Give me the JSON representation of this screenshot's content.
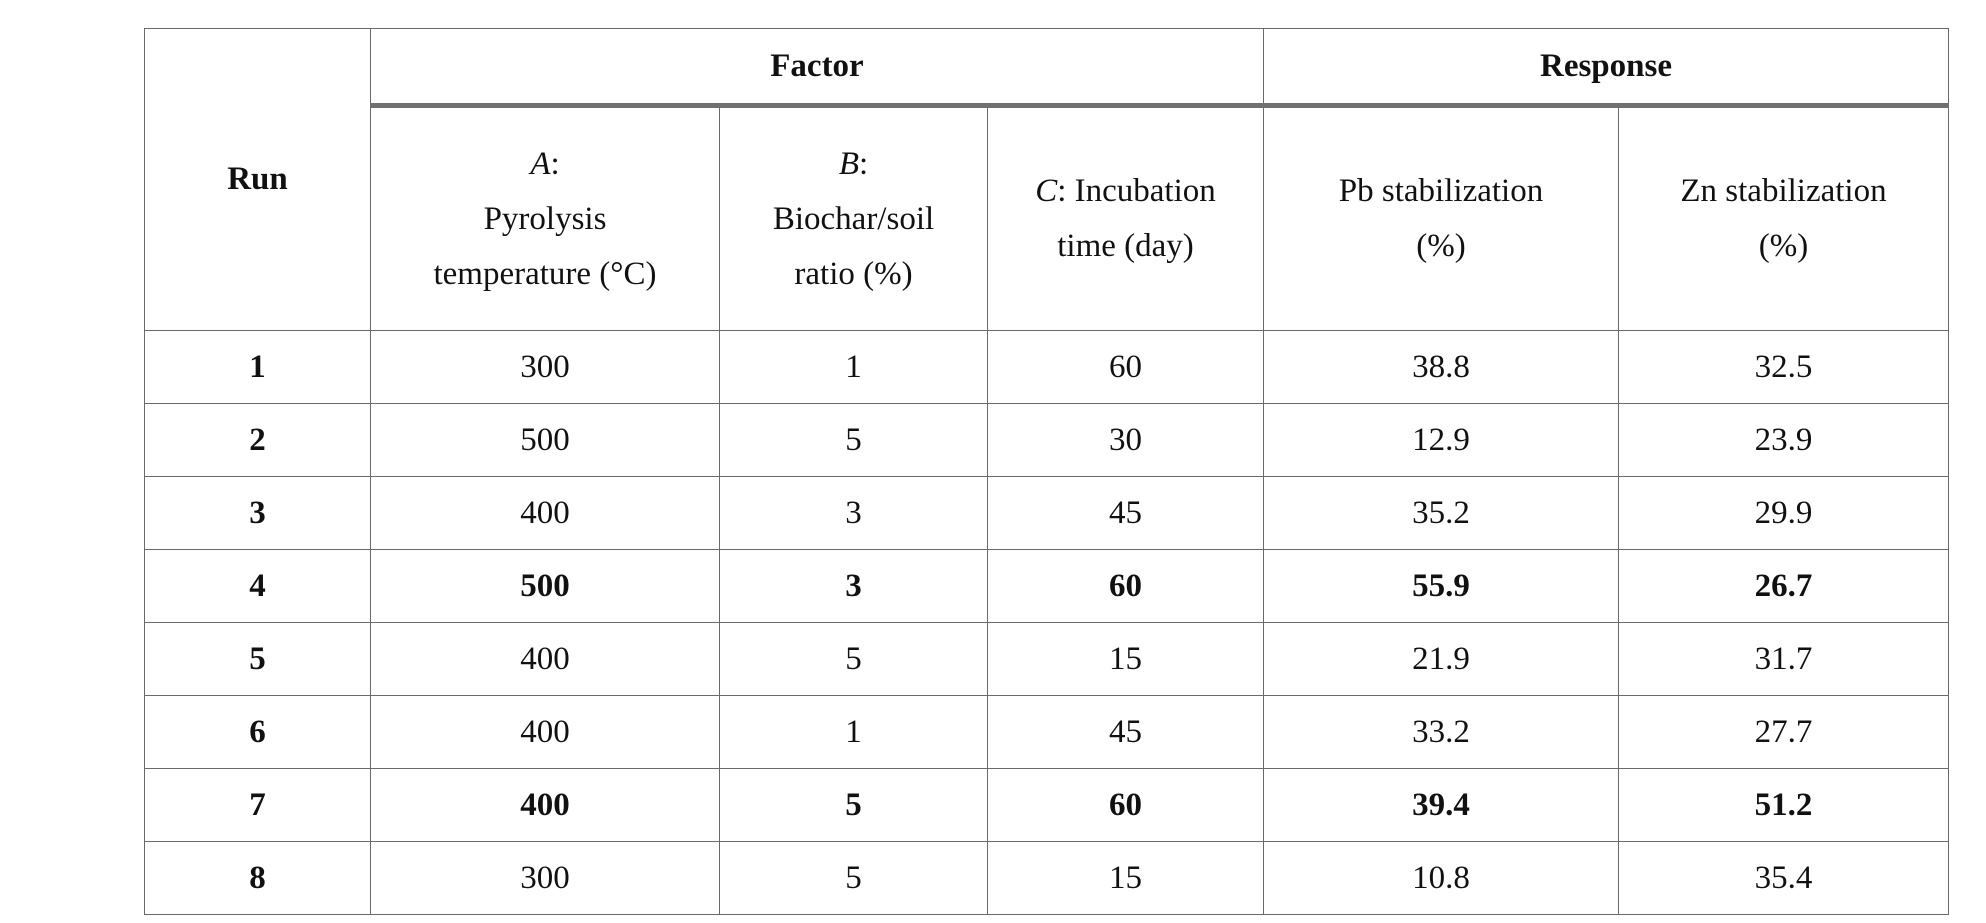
{
  "table": {
    "header": {
      "run": "Run",
      "factor": "Factor",
      "response": "Response",
      "columns": [
        {
          "symbol": "A",
          "lines": [
            ":",
            "Pyrolysis",
            "temperature (°C)"
          ]
        },
        {
          "symbol": "B",
          "lines": [
            ":",
            "Biochar/soil",
            "ratio (%)"
          ]
        },
        {
          "symbol": "C",
          "lines": [
            ": Incubation",
            "time (day)"
          ]
        },
        {
          "lines": [
            "Pb stabilization",
            "(%)"
          ]
        },
        {
          "lines": [
            "Zn stabilization",
            "(%)"
          ]
        }
      ]
    },
    "rows": [
      {
        "cells": [
          1,
          300,
          1,
          60,
          38.8,
          32.5
        ],
        "bold": false
      },
      {
        "cells": [
          2,
          500,
          5,
          30,
          12.9,
          23.9
        ],
        "bold": false
      },
      {
        "cells": [
          3,
          400,
          3,
          45,
          35.2,
          29.9
        ],
        "bold": false
      },
      {
        "cells": [
          4,
          500,
          3,
          60,
          55.9,
          26.7
        ],
        "bold": true
      },
      {
        "cells": [
          5,
          400,
          5,
          15,
          21.9,
          31.7
        ],
        "bold": false
      },
      {
        "cells": [
          6,
          400,
          1,
          45,
          33.2,
          27.7
        ],
        "bold": false
      },
      {
        "cells": [
          7,
          400,
          5,
          60,
          39.4,
          51.2
        ],
        "bold": true
      },
      {
        "cells": [
          8,
          300,
          5,
          15,
          10.8,
          35.4
        ],
        "bold": false
      }
    ]
  }
}
